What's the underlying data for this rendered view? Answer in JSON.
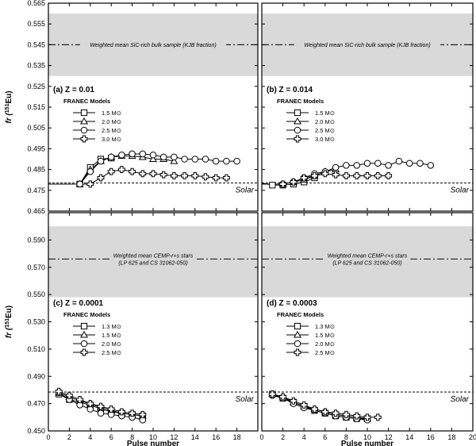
{
  "chart_data": [
    {
      "type": "line",
      "panel_label": "(a) Z = 0.01",
      "legend_title": "FRANEC Models",
      "xlim": [
        0,
        20
      ],
      "ylim": [
        0.465,
        0.565
      ],
      "yticks": [
        "0.465",
        "0.475",
        "0.485",
        "0.495",
        "0.505",
        "0.515",
        "0.525",
        "0.535",
        "0.545",
        "0.555",
        "0.565"
      ],
      "ylabel": "fr (151Eu)",
      "ylabel_base": "fr",
      "ylabel_sup": "151",
      "ylabel_rest": "Eu)",
      "band": {
        "lower": 0.53,
        "upper": 0.56,
        "mean": 0.545,
        "label_lines": [
          "Weighted mean SiC-rich bulk sample (KJB fraction)"
        ]
      },
      "solar": {
        "value": 0.4785,
        "label": "Solar"
      },
      "series": [
        {
          "name": "1.5 M⊙",
          "marker": "square",
          "x": [
            0,
            3,
            4,
            5,
            6
          ],
          "y": [
            0.478,
            0.478,
            0.486,
            0.49,
            0.4905
          ]
        },
        {
          "name": "2.0 M⊙",
          "marker": "triangle",
          "x": [
            0,
            3,
            4,
            5,
            6,
            7,
            8,
            9,
            10,
            11,
            12
          ],
          "y": [
            0.478,
            0.478,
            0.485,
            0.489,
            0.491,
            0.4915,
            0.4915,
            0.491,
            0.49,
            0.49,
            0.489
          ]
        },
        {
          "name": "2.5 M⊙",
          "marker": "circle",
          "x": [
            0,
            3,
            4,
            5,
            6,
            7,
            8,
            9,
            10,
            11,
            12,
            13,
            14,
            15,
            16,
            17,
            18
          ],
          "y": [
            0.478,
            0.478,
            0.484,
            0.489,
            0.491,
            0.492,
            0.4925,
            0.4925,
            0.492,
            0.491,
            0.491,
            0.49,
            0.49,
            0.49,
            0.489,
            0.489,
            0.489
          ]
        },
        {
          "name": "3.0 M⊙",
          "marker": "plus",
          "x": [
            0,
            4,
            5,
            6,
            7,
            8,
            9,
            10,
            11,
            12,
            13,
            14,
            15,
            16,
            17
          ],
          "y": [
            0.478,
            0.478,
            0.481,
            0.484,
            0.485,
            0.484,
            0.483,
            0.483,
            0.4825,
            0.482,
            0.482,
            0.482,
            0.4815,
            0.481,
            0.481
          ]
        }
      ]
    },
    {
      "type": "line",
      "panel_label": "(b) Z = 0.014",
      "legend_title": "FRANEC Models",
      "xlim": [
        0,
        20
      ],
      "ylim": [
        0.465,
        0.565
      ],
      "band": {
        "lower": 0.53,
        "upper": 0.56,
        "mean": 0.545,
        "label_lines": [
          "Weighted mean SiC-rich bulk sample (KJB fraction)"
        ]
      },
      "solar": {
        "value": 0.4785,
        "label": "Solar"
      },
      "series": [
        {
          "name": "1.5 M⊙",
          "marker": "square",
          "x": [
            0,
            1,
            2,
            3,
            4,
            5
          ],
          "y": [
            0.4785,
            0.4775,
            0.4775,
            0.478,
            0.479,
            0.481
          ]
        },
        {
          "name": "2.0 M⊙",
          "marker": "triangle",
          "x": [
            0,
            2,
            3,
            4,
            5,
            6,
            7
          ],
          "y": [
            0.478,
            0.478,
            0.479,
            0.48,
            0.482,
            0.484,
            0.485
          ]
        },
        {
          "name": "2.5 M⊙",
          "marker": "circle",
          "x": [
            0,
            2,
            3,
            4,
            5,
            6,
            7,
            8,
            9,
            10,
            11,
            12,
            13,
            14,
            15,
            16
          ],
          "y": [
            0.478,
            0.478,
            0.479,
            0.481,
            0.483,
            0.484,
            0.486,
            0.487,
            0.487,
            0.488,
            0.488,
            0.487,
            0.489,
            0.488,
            0.488,
            0.487
          ]
        },
        {
          "name": "3.0 M⊙",
          "marker": "plus",
          "x": [
            0,
            2,
            3,
            4,
            5,
            6,
            7,
            8,
            9,
            10,
            11,
            12
          ],
          "y": [
            0.478,
            0.478,
            0.479,
            0.481,
            0.482,
            0.483,
            0.4825,
            0.482,
            0.482,
            0.482,
            0.482,
            0.482
          ]
        }
      ]
    },
    {
      "type": "line",
      "panel_label": "(c) Z = 0.0001",
      "legend_title": "FRANEC Models",
      "xlim": [
        0,
        20
      ],
      "ylim": [
        0.45,
        0.61
      ],
      "yticks": [
        "0.450",
        "0.470",
        "0.490",
        "0.510",
        "0.530",
        "0.550",
        "0.570",
        "0.590"
      ],
      "xticks": [
        "0",
        "2",
        "4",
        "6",
        "8",
        "10",
        "12",
        "14",
        "16",
        "18"
      ],
      "xlabel": "Pulse number",
      "ylabel": "fr (151Eu)",
      "ylabel_base": "fr",
      "ylabel_sup": "151",
      "ylabel_rest": "Eu)",
      "band": {
        "lower": 0.548,
        "upper": 0.6,
        "mean": 0.576,
        "label_lines": [
          "Weighted mean CEMP-r+s stars",
          "(LP 625 and CS 31062-050)"
        ]
      },
      "solar": {
        "value": 0.4785,
        "label": "Solar"
      },
      "series": [
        {
          "name": "1.3 M⊙",
          "marker": "square",
          "x": [
            1,
            2,
            3,
            4,
            5,
            6,
            7,
            8,
            9
          ],
          "y": [
            0.477,
            0.473,
            0.471,
            0.469,
            0.466,
            0.464,
            0.463,
            0.462,
            0.461
          ]
        },
        {
          "name": "1.5 M⊙",
          "marker": "triangle",
          "x": [
            1,
            2,
            3,
            4,
            5,
            6,
            7,
            8,
            9
          ],
          "y": [
            0.478,
            0.475,
            0.472,
            0.47,
            0.467,
            0.465,
            0.463,
            0.462,
            0.461
          ]
        },
        {
          "name": "2.0 M⊙",
          "marker": "circle",
          "x": [
            1,
            2,
            3,
            4,
            5,
            6,
            7,
            8,
            9
          ],
          "y": [
            0.478,
            0.473,
            0.469,
            0.466,
            0.463,
            0.462,
            0.461,
            0.46,
            0.458
          ]
        },
        {
          "name": "2.5 M⊙",
          "marker": "plus",
          "x": [
            1,
            2,
            3,
            4,
            5,
            6,
            7,
            8,
            9
          ],
          "y": [
            0.479,
            0.476,
            0.473,
            0.47,
            0.468,
            0.466,
            0.464,
            0.463,
            0.462
          ]
        }
      ]
    },
    {
      "type": "line",
      "panel_label": "(d) Z = 0.0003",
      "legend_title": "FRANEC Models",
      "xlim": [
        0,
        20
      ],
      "ylim": [
        0.45,
        0.61
      ],
      "xticks": [
        "0",
        "2",
        "4",
        "6",
        "8",
        "10",
        "12",
        "14",
        "16",
        "18",
        "20"
      ],
      "xlabel": "Pulse number",
      "band": {
        "lower": 0.548,
        "upper": 0.6,
        "mean": 0.576,
        "label_lines": [
          "Weighted mean CEMP-r+s stars",
          "(LP 625 and CS 31062-050)"
        ]
      },
      "solar": {
        "value": 0.4785,
        "label": "Solar"
      },
      "series": [
        {
          "name": "1.3 M⊙",
          "marker": "square",
          "x": [
            1,
            2,
            3,
            4,
            5,
            6,
            7,
            8,
            9,
            10
          ],
          "y": [
            0.477,
            0.474,
            0.471,
            0.468,
            0.465,
            0.463,
            0.461,
            0.46,
            0.459,
            0.459
          ]
        },
        {
          "name": "1.5 M⊙",
          "marker": "triangle",
          "x": [
            1,
            2,
            3,
            4,
            5,
            6,
            7,
            8,
            9,
            10
          ],
          "y": [
            0.477,
            0.475,
            0.471,
            0.468,
            0.466,
            0.464,
            0.462,
            0.461,
            0.46,
            0.459
          ]
        },
        {
          "name": "2.0 M⊙",
          "marker": "circle",
          "x": [
            1,
            2,
            3,
            4,
            5,
            6,
            7,
            8,
            9,
            10
          ],
          "y": [
            0.476,
            0.474,
            0.47,
            0.467,
            0.465,
            0.463,
            0.461,
            0.46,
            0.459,
            0.458
          ]
        },
        {
          "name": "2.5 M⊙",
          "marker": "plus",
          "x": [
            1,
            2,
            3,
            4,
            5,
            6,
            7,
            8,
            9,
            10,
            11
          ],
          "y": [
            0.477,
            0.475,
            0.472,
            0.469,
            0.466,
            0.464,
            0.463,
            0.462,
            0.461,
            0.46,
            0.46
          ]
        }
      ]
    }
  ]
}
